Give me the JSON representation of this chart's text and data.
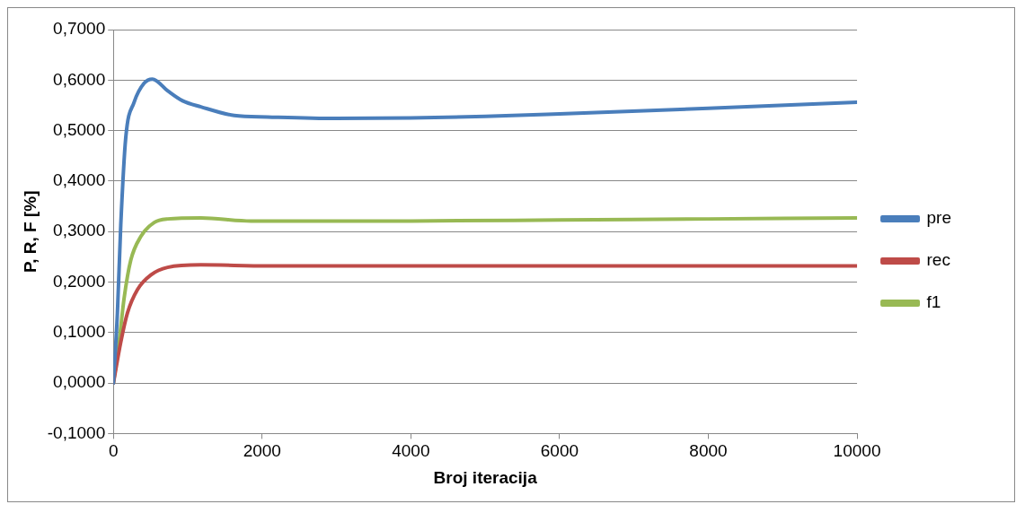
{
  "chart_data": {
    "type": "line",
    "xlabel": "Broj iteracija",
    "ylabel": "P, R, F [%]",
    "xlim": [
      0,
      10000
    ],
    "xticks": [
      0,
      2000,
      4000,
      6000,
      8000,
      10000
    ],
    "ylim": [
      -0.1,
      0.7
    ],
    "yticks": [
      {
        "value": -0.1,
        "label": "-0,1000"
      },
      {
        "value": 0,
        "label": "0,0000"
      },
      {
        "value": 0.1,
        "label": "0,1000"
      },
      {
        "value": 0.2,
        "label": "0,2000"
      },
      {
        "value": 0.3,
        "label": "0,3000"
      },
      {
        "value": 0.4,
        "label": "0,4000"
      },
      {
        "value": 0.5,
        "label": "0,5000"
      },
      {
        "value": 0.6,
        "label": "0,6000"
      },
      {
        "value": 0.7,
        "label": "0,7000"
      }
    ],
    "grid": "y",
    "legend": "right",
    "marker": "none",
    "line_style": "solid",
    "series": [
      {
        "name": "pre",
        "color": "#4a7ebb",
        "x": [
          0,
          54,
          99,
          166,
          278,
          413,
          525,
          728,
          930,
          1176,
          1625,
          2074,
          3000,
          4000,
          5000,
          6000,
          8000,
          10000
        ],
        "values": [
          0,
          0.139,
          0.313,
          0.486,
          0.556,
          0.594,
          0.602,
          0.579,
          0.559,
          0.547,
          0.53,
          0.527,
          0.524,
          0.525,
          0.528,
          0.533,
          0.544,
          0.556
        ]
      },
      {
        "name": "rec",
        "color": "#be4b48",
        "x": [
          0,
          99,
          189,
          323,
          503,
          728,
          1176,
          2074,
          4000,
          6000,
          8000,
          10000
        ],
        "values": [
          0,
          0.081,
          0.139,
          0.185,
          0.214,
          0.229,
          0.234,
          0.232,
          0.232,
          0.232,
          0.232,
          0.232
        ]
      },
      {
        "name": "f1",
        "color": "#98b954",
        "x": [
          0,
          76,
          144,
          233,
          368,
          548,
          728,
          1176,
          1850,
          4000,
          6000,
          8000,
          10000
        ],
        "values": [
          0,
          0.081,
          0.168,
          0.243,
          0.29,
          0.318,
          0.325,
          0.327,
          0.321,
          0.321,
          0.323,
          0.325,
          0.327
        ]
      }
    ]
  }
}
